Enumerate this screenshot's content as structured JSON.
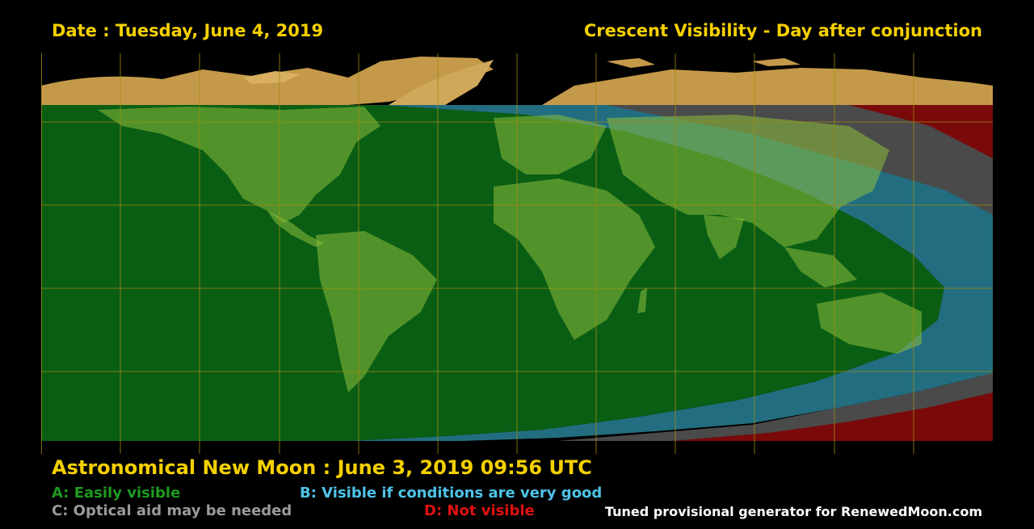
{
  "header": {
    "date_text": "Date : Tuesday, June 4, 2019",
    "title_text": "Crescent Visibility - Day after conjunction"
  },
  "footer": {
    "new_moon_text": "Astronomical New Moon : June 3, 2019 09:56 UTC",
    "credit_text": "Tuned provisional generator for RenewedMoon.com"
  },
  "legend": [
    {
      "code": "A",
      "text": "A: Easily visible",
      "color": "#1f9a1f"
    },
    {
      "code": "B",
      "text": "B: Visible if conditions are very good",
      "color": "#4fc3e8"
    },
    {
      "code": "C",
      "text": "C: Optical aid may be needed",
      "color": "#9a9a9a"
    },
    {
      "code": "D",
      "text": "D: Not visible",
      "color": "#e01010"
    }
  ],
  "map": {
    "projection": "equirectangular",
    "zone_colors": {
      "A": "#0a5e14",
      "B": "#226e80",
      "C": "#4a4a4a",
      "D": "#7a0a0a",
      "land": "#c49a4a",
      "grid": "#a08a10"
    }
  }
}
